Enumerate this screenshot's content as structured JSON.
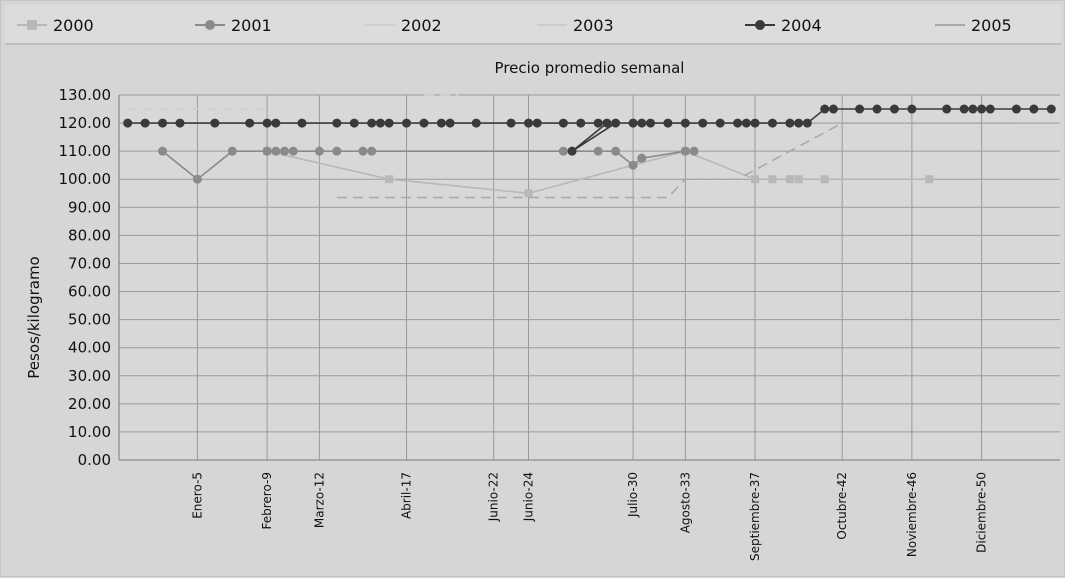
{
  "chart_data": {
    "type": "line",
    "title": "Precio promedio semanal",
    "ylabel": "Pesos/kilogramo",
    "xlabel": "",
    "ylim": [
      0,
      130
    ],
    "yticks": [
      "0.00",
      "10.00",
      "20.00",
      "30.00",
      "40.00",
      "50.00",
      "60.00",
      "70.00",
      "80.00",
      "90.00",
      "100.00",
      "110.00",
      "120.00",
      "130.00"
    ],
    "week_range": [
      1,
      52
    ],
    "xticks": [
      {
        "week": 5,
        "label": "Enero-5"
      },
      {
        "week": 9,
        "label": "Febrero-9"
      },
      {
        "week": 12,
        "label": "Marzo-12"
      },
      {
        "week": 17,
        "label": "Abril-17"
      },
      {
        "week": 22,
        "label": "Junio-22"
      },
      {
        "week": 24,
        "label": "Junio-24"
      },
      {
        "week": 30,
        "label": "Julio-30"
      },
      {
        "week": 33,
        "label": "Agosto-33"
      },
      {
        "week": 37,
        "label": "Septiembre-37"
      },
      {
        "week": 42,
        "label": "Octubre-42"
      },
      {
        "week": 46,
        "label": "Noviembre-46"
      },
      {
        "week": 50,
        "label": "Diciembre-50"
      }
    ],
    "grid": true,
    "legend_position": "top",
    "series": [
      {
        "name": "2000",
        "color": "#b8b8b8",
        "marker": "square",
        "points": [
          [
            9,
            110
          ],
          [
            16,
            100
          ],
          [
            24,
            95
          ],
          [
            33,
            110
          ],
          [
            37,
            100
          ],
          [
            38,
            100
          ],
          [
            39,
            100
          ],
          [
            39.5,
            100
          ],
          [
            41,
            100
          ],
          [
            47,
            100
          ]
        ]
      },
      {
        "name": "2001",
        "color": "#8a8a8a",
        "marker": "circle",
        "points": [
          [
            3,
            110
          ],
          [
            5,
            100
          ],
          [
            7,
            110
          ],
          [
            9,
            110
          ],
          [
            9.5,
            110
          ],
          [
            10,
            110
          ],
          [
            10.5,
            110
          ],
          [
            12,
            110
          ],
          [
            13,
            110
          ],
          [
            14.5,
            110
          ],
          [
            15,
            110
          ],
          [
            26,
            110
          ],
          [
            28,
            110
          ],
          [
            29,
            110
          ],
          [
            30,
            105
          ],
          [
            30.5,
            107.5
          ],
          [
            33,
            110
          ],
          [
            33.5,
            110
          ]
        ]
      },
      {
        "name": "2002",
        "color": "#d0d0d0",
        "marker": "none",
        "points": [
          [
            1,
            125
          ],
          [
            2,
            125
          ],
          [
            3,
            125
          ],
          [
            4,
            125
          ],
          [
            5,
            125
          ],
          [
            6,
            125
          ],
          [
            7,
            125
          ],
          [
            8,
            125
          ],
          [
            9,
            125
          ]
        ]
      },
      {
        "name": "2003",
        "color": "#cccccc",
        "marker": "none",
        "points": [
          [
            18,
            130
          ],
          [
            19,
            130
          ],
          [
            19.5,
            130
          ],
          [
            20,
            130
          ]
        ]
      },
      {
        "name": "2004",
        "color": "#3a3a3a",
        "marker": "circle",
        "points": [
          [
            1,
            120
          ],
          [
            2,
            120
          ],
          [
            3,
            120
          ],
          [
            4,
            120
          ],
          [
            6,
            120
          ],
          [
            8,
            120
          ],
          [
            9,
            120
          ],
          [
            9.5,
            120
          ],
          [
            11,
            120
          ],
          [
            13,
            120
          ],
          [
            14,
            120
          ],
          [
            15,
            120
          ],
          [
            15.5,
            120
          ],
          [
            16,
            120
          ],
          [
            17,
            120
          ],
          [
            18,
            120
          ],
          [
            19,
            120
          ],
          [
            19.5,
            120
          ],
          [
            21,
            120
          ],
          [
            23,
            120
          ],
          [
            24,
            120
          ],
          [
            24.5,
            120
          ],
          [
            26,
            120
          ],
          [
            27,
            120
          ],
          [
            28,
            120
          ],
          [
            28.5,
            120
          ],
          [
            26.5,
            110
          ],
          [
            29,
            120
          ],
          [
            30,
            120
          ],
          [
            30.5,
            120
          ],
          [
            31,
            120
          ],
          [
            32,
            120
          ],
          [
            33,
            120
          ],
          [
            34,
            120
          ],
          [
            35,
            120
          ],
          [
            36,
            120
          ],
          [
            36.5,
            120
          ],
          [
            37,
            120
          ],
          [
            38,
            120
          ],
          [
            39,
            120
          ],
          [
            39.5,
            120
          ],
          [
            40,
            120
          ],
          [
            41,
            125
          ],
          [
            41.5,
            125
          ],
          [
            43,
            125
          ],
          [
            44,
            125
          ],
          [
            45,
            125
          ],
          [
            46,
            125
          ],
          [
            48,
            125
          ],
          [
            49,
            125
          ],
          [
            49.5,
            125
          ],
          [
            50,
            125
          ],
          [
            50.5,
            125
          ],
          [
            52,
            125
          ],
          [
            53,
            125
          ],
          [
            54,
            125
          ]
        ]
      },
      {
        "name": "2005",
        "color": "#a8a8a8",
        "marker": "none",
        "points": [
          [
            13,
            93.5
          ],
          [
            20,
            93.5
          ],
          [
            22,
            93.5
          ],
          [
            28,
            93.5
          ],
          [
            32,
            93.5
          ],
          [
            33,
            100
          ],
          [
            36,
            100
          ],
          [
            42,
            120
          ],
          [
            45,
            120
          ],
          [
            52,
            120
          ]
        ]
      }
    ]
  }
}
